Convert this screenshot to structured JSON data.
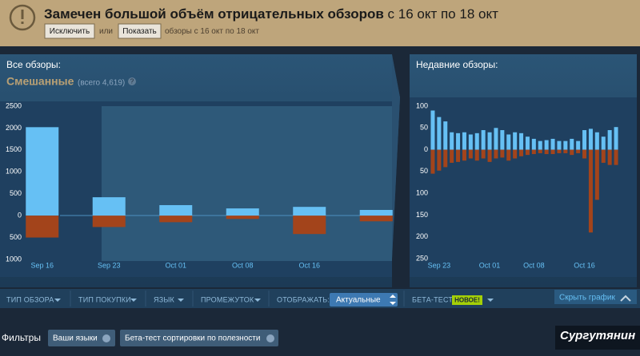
{
  "banner": {
    "title": "Замечен большой объём отрицательных обзоров",
    "period": "с 16 окт по 18 окт",
    "exclude_button": "Исключить",
    "or": "или",
    "show_button": "Показать",
    "show_note": "обзоры с 16 окт по 18 окт"
  },
  "overall": {
    "label": "Все обзоры:",
    "rating": "Смешанные",
    "total": "(всего 4,619)",
    "help": "?"
  },
  "recent": {
    "label": "Недавние обзоры:"
  },
  "chart_data": [
    {
      "type": "bar",
      "categories": [
        "Sep 16",
        "Sep 23",
        "Oct 01",
        "Oct 08",
        "Oct 16",
        null
      ],
      "series": [
        {
          "color": "#66c0f4",
          "values": [
            2020,
            420,
            240,
            165,
            200,
            130
          ]
        },
        {
          "color": "#a3441b",
          "values": [
            -500,
            -260,
            -150,
            -75,
            -420,
            -130
          ]
        }
      ],
      "ylim": [
        -1000,
        2500
      ],
      "yticks": [
        {
          "value": -1000,
          "label": "1000"
        },
        {
          "value": -500,
          "label": "500"
        },
        0,
        500,
        1000,
        1500,
        2000,
        2500
      ]
    },
    {
      "type": "bar",
      "categories": [
        null,
        "Sep 23",
        null,
        null,
        null,
        null,
        null,
        null,
        null,
        "Oct 01",
        null,
        null,
        null,
        null,
        null,
        null,
        "Oct 08",
        null,
        null,
        null,
        null,
        null,
        null,
        null,
        "Oct 16",
        null,
        null,
        null,
        null,
        null
      ],
      "series": [
        {
          "color": "#66c0f4",
          "values": [
            90,
            75,
            65,
            40,
            38,
            40,
            35,
            38,
            45,
            40,
            50,
            45,
            35,
            40,
            38,
            30,
            25,
            20,
            22,
            25,
            20,
            20,
            25,
            20,
            45,
            48,
            40,
            30,
            45,
            52
          ]
        },
        {
          "color": "#a3441b",
          "values": [
            -55,
            -48,
            -40,
            -30,
            -28,
            -25,
            -20,
            -25,
            -20,
            -28,
            -20,
            -18,
            -25,
            -20,
            -15,
            -12,
            -10,
            -8,
            -10,
            -10,
            -8,
            -8,
            -12,
            -8,
            -20,
            -190,
            -115,
            -30,
            -35,
            -35
          ]
        }
      ],
      "ylim": [
        -250,
        100
      ],
      "yticks": [
        {
          "value": -250,
          "label": "250"
        },
        {
          "value": -200,
          "label": "200"
        },
        {
          "value": -150,
          "label": "150"
        },
        {
          "value": -100,
          "label": "100"
        },
        {
          "value": -50,
          "label": "50"
        },
        0,
        50,
        100
      ]
    }
  ],
  "filter_bar": {
    "review_type": "ТИП ОБЗОРА",
    "purchase_type": "ТИП ПОКУПКИ",
    "language": "ЯЗЫК",
    "period": "ПРОМЕЖУТОК",
    "display": "ОТОБРАЖАТЬ:",
    "display_value": "Актуальные",
    "beta": "БЕТА-ТЕСТ",
    "beta_new": "НОВОЕ!",
    "hide_graph": "Скрыть график"
  },
  "filters": {
    "label": "Фильтры",
    "chips": [
      "Ваши языки",
      "Бета-тест сортировки по полезности"
    ]
  },
  "watermark": "Сургутянин"
}
